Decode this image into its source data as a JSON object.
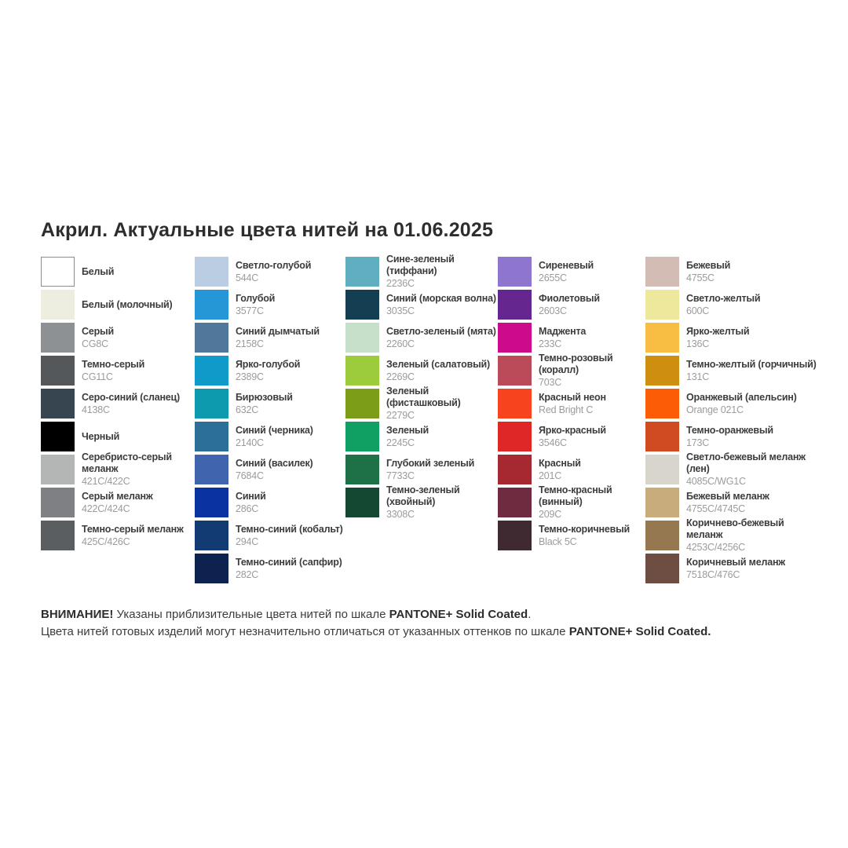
{
  "title": "Акрил. Актуальные цвета нитей на 01.06.2025",
  "palette": {
    "columns": [
      {
        "items": [
          {
            "name": "Белый",
            "code": "",
            "color": "#FFFFFF",
            "border": true
          },
          {
            "name": "Белый (молочный)",
            "code": "",
            "color": "#EDEEDF",
            "border": false
          },
          {
            "name": "Серый",
            "code": "CG8C",
            "color": "#8E9193",
            "border": false
          },
          {
            "name": "Темно-серый",
            "code": "CG11C",
            "color": "#54585A",
            "border": false
          },
          {
            "name": "Серо-синий (сланец)",
            "code": "4138C",
            "color": "#36454F",
            "border": false
          },
          {
            "name": "Черный",
            "code": "",
            "color": "#000000",
            "border": false
          },
          {
            "name": "Серебристо-серый меланж",
            "code": "421C/422C",
            "color": "#B4B6B5",
            "border": false
          },
          {
            "name": "Серый меланж",
            "code": "422C/424C",
            "color": "#7E8083",
            "border": false
          },
          {
            "name": "Темно-серый меланж",
            "code": "425C/426C",
            "color": "#5B5E60",
            "border": false
          }
        ]
      },
      {
        "items": [
          {
            "name": "Светло-голубой",
            "code": "544C",
            "color": "#BACDE2",
            "border": false
          },
          {
            "name": "Голубой",
            "code": "3577C",
            "color": "#2596D6",
            "border": false
          },
          {
            "name": "Синий дымчатый",
            "code": "2158C",
            "color": "#50789A",
            "border": false
          },
          {
            "name": "Ярко-голубой",
            "code": "2389C",
            "color": "#0F9ACA",
            "border": false
          },
          {
            "name": "Бирюзовый",
            "code": "632C",
            "color": "#0D9AAE",
            "border": false
          },
          {
            "name": "Синий (черника)",
            "code": "2140C",
            "color": "#2D7097",
            "border": false
          },
          {
            "name": "Синий (василек)",
            "code": "7684C",
            "color": "#4065AE",
            "border": false
          },
          {
            "name": "Синий",
            "code": "286C",
            "color": "#0A33A1",
            "border": false
          },
          {
            "name": "Темно-синий (кобальт)",
            "code": "294C",
            "color": "#123B74",
            "border": false
          },
          {
            "name": "Темно-синий (сапфир)",
            "code": "282C",
            "color": "#0E2250",
            "border": false
          }
        ]
      },
      {
        "items": [
          {
            "name": "Сине-зеленый (тиффани)",
            "code": "2236C",
            "color": "#60AFC0",
            "border": false
          },
          {
            "name": "Синий (морская волна)",
            "code": "3035C",
            "color": "#143F52",
            "border": false
          },
          {
            "name": "Светло-зеленый (мята)",
            "code": "2260C",
            "color": "#C7E0CA",
            "border": false
          },
          {
            "name": "Зеленый (салатовый)",
            "code": "2269C",
            "color": "#9CCB3C",
            "border": false
          },
          {
            "name": "Зеленый (фисташковый)",
            "code": "2279C",
            "color": "#7C9D17",
            "border": false
          },
          {
            "name": "Зеленый",
            "code": "2245C",
            "color": "#11A064",
            "border": false
          },
          {
            "name": "Глубокий зеленый",
            "code": "7733C",
            "color": "#1E7046",
            "border": false
          },
          {
            "name": "Темно-зеленый (хвойный)",
            "code": "3308C",
            "color": "#154833",
            "border": false
          }
        ]
      },
      {
        "items": [
          {
            "name": "Сиреневый",
            "code": "2655C",
            "color": "#8E76CF",
            "border": false
          },
          {
            "name": "Фиолетовый",
            "code": "2603C",
            "color": "#65278F",
            "border": false
          },
          {
            "name": "Маджента",
            "code": "233C",
            "color": "#CE0A8C",
            "border": false
          },
          {
            "name": "Темно-розовый (коралл)",
            "code": "703C",
            "color": "#BC4B59",
            "border": false
          },
          {
            "name": "Красный неон",
            "code": "Red Bright C",
            "color": "#F8431F",
            "border": false
          },
          {
            "name": "Ярко-красный",
            "code": "3546C",
            "color": "#DF2727",
            "border": false
          },
          {
            "name": "Красный",
            "code": "201C",
            "color": "#A62831",
            "border": false
          },
          {
            "name": "Темно-красный (винный)",
            "code": "209C",
            "color": "#6F2B40",
            "border": false
          },
          {
            "name": "Темно-коричневый",
            "code": "Black 5C",
            "color": "#402A32",
            "border": false
          }
        ]
      },
      {
        "items": [
          {
            "name": "Бежевый",
            "code": "4755C",
            "color": "#D2BCB3",
            "border": false
          },
          {
            "name": "Светло-желтый",
            "code": "600C",
            "color": "#EDE89B",
            "border": false
          },
          {
            "name": "Ярко-желтый",
            "code": "136C",
            "color": "#F8BE44",
            "border": false
          },
          {
            "name": "Темно-желтый (горчичный)",
            "code": "131C",
            "color": "#CE8F10",
            "border": false
          },
          {
            "name": "Оранжевый (апельсин)",
            "code": "Orange 021C",
            "color": "#FC5C05",
            "border": false
          },
          {
            "name": "Темно-оранжевый",
            "code": "173C",
            "color": "#D04A22",
            "border": false
          },
          {
            "name": "Светло-бежевый меланж (лен)",
            "code": "4085C/WG1C",
            "color": "#D8D5CD",
            "border": false
          },
          {
            "name": "Бежевый меланж",
            "code": "4755C/4745C",
            "color": "#C8AC7C",
            "border": false
          },
          {
            "name": "Коричнево-бежевый меланж",
            "code": "4253C/4256C",
            "color": "#957750",
            "border": false
          },
          {
            "name": "Коричневый меланж",
            "code": "7518C/476C",
            "color": "#6E4D42",
            "border": false
          }
        ]
      }
    ]
  },
  "note": {
    "lines": [
      {
        "parts": [
          {
            "text": "ВНИМАНИЕ!",
            "bold": true
          },
          {
            "text": " Указаны приблизительные цвета нитей по шкале ",
            "bold": false
          },
          {
            "text": "PANTONE+ Solid Coated",
            "bold": true
          },
          {
            "text": ".",
            "bold": false
          }
        ]
      },
      {
        "parts": [
          {
            "text": "Цвета нитей готовых изделий могут незначительно отличаться от указанных оттенков по шкале ",
            "bold": false
          },
          {
            "text": "PANTONE+ Solid Coated.",
            "bold": true
          }
        ]
      }
    ]
  }
}
